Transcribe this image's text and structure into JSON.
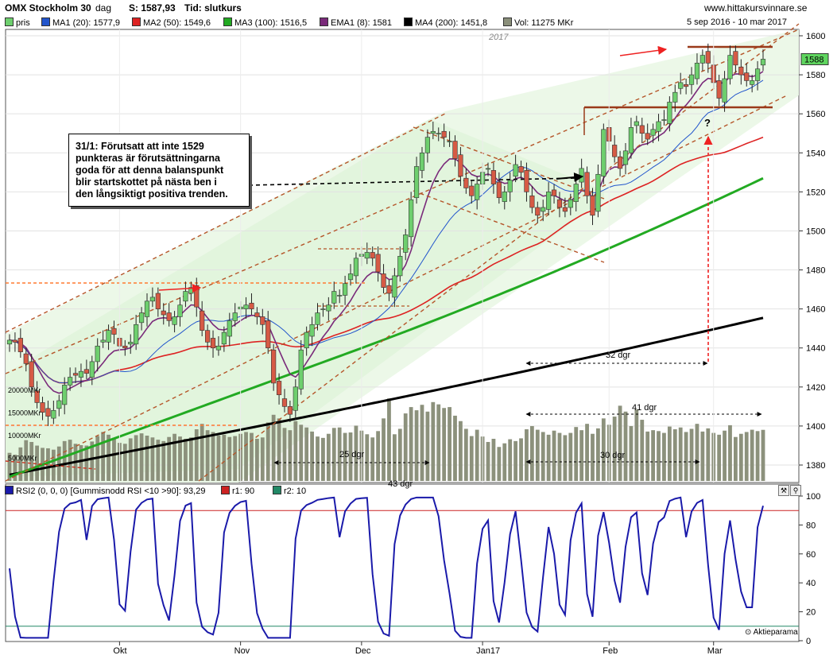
{
  "header": {
    "instrument": "OMX Stockholm 30",
    "period": "dag",
    "close_label": "S: 1587,93",
    "time_label": "Tid: slutkurs",
    "website": "www.hittakursvinnare.se",
    "date_range": "5 sep 2016 - 10 mar 2017"
  },
  "legend": [
    {
      "label": "pris",
      "color": "#6ecf6e"
    },
    {
      "label": "MA1 (20): 1577,9",
      "color": "#2255cc"
    },
    {
      "label": "MA2 (50): 1549,6",
      "color": "#dd2222"
    },
    {
      "label": "MA3 (100): 1516,5",
      "color": "#22aa22"
    },
    {
      "label": "EMA1 (8): 1581",
      "color": "#7a2a7a"
    },
    {
      "label": "MA4 (200): 1451,8",
      "color": "#000000"
    },
    {
      "label": "Vol: 11275 MKr",
      "color": "#8a8f7a"
    }
  ],
  "annotation": {
    "lines": [
      "31/1: Förutsatt att inte 1529",
      "punkteras är förutsättningarna",
      "goda för att denna balanspunkt",
      "blir startskottet på nästa ben i",
      "den långsiktigt positiva trenden."
    ],
    "question_mark": "?",
    "year_label": "2017",
    "dur_25": "25 dgr",
    "dur_32": "32 dgr",
    "dur_41": "41 dgr",
    "dur_30": "30 dgr",
    "dur_43": "43 dgr"
  },
  "price_axis": {
    "ticks": [
      1380,
      1400,
      1420,
      1440,
      1460,
      1480,
      1500,
      1520,
      1540,
      1560,
      1580,
      1600
    ],
    "last_price_label": "1588"
  },
  "volume_axis": {
    "ticks": [
      "20000MKr",
      "15000MKr",
      "10000MKr",
      "5000MKr"
    ]
  },
  "x_axis": {
    "labels": [
      "Okt",
      "Nov",
      "Dec",
      "Jan17",
      "Feb",
      "Mar"
    ]
  },
  "rsi": {
    "legend": "RSI2 (0, 0, 0) [Gummisnodd RSI <10 >90]: 93,29",
    "r1": "r1: 90",
    "r2": "r2: 10",
    "ticks": [
      0,
      20,
      40,
      60,
      80,
      100
    ],
    "credit": "Aktieparama",
    "colors": {
      "line": "#1a1aaa",
      "r1": "#cc2222",
      "r2": "#228866"
    }
  },
  "chart_data": {
    "type": "candlestick",
    "title": "OMX Stockholm 30",
    "y_range": [
      1370,
      1605
    ],
    "rsi_range": [
      0,
      100
    ],
    "closes": [
      1444,
      1443,
      1438,
      1432,
      1420,
      1412,
      1407,
      1405,
      1408,
      1413,
      1421,
      1425,
      1426,
      1428,
      1427,
      1433,
      1441,
      1444,
      1449,
      1447,
      1441,
      1440,
      1443,
      1452,
      1458,
      1464,
      1466,
      1460,
      1457,
      1454,
      1456,
      1462,
      1469,
      1471,
      1461,
      1449,
      1443,
      1440,
      1441,
      1448,
      1454,
      1458,
      1461,
      1462,
      1460,
      1456,
      1452,
      1440,
      1422,
      1416,
      1410,
      1406,
      1420,
      1439,
      1448,
      1452,
      1458,
      1460,
      1462,
      1469,
      1467,
      1473,
      1478,
      1486,
      1488,
      1489,
      1486,
      1479,
      1471,
      1468,
      1477,
      1487,
      1498,
      1516,
      1533,
      1540,
      1548,
      1551,
      1550,
      1548,
      1546,
      1537,
      1528,
      1522,
      1518,
      1524,
      1530,
      1532,
      1524,
      1517,
      1520,
      1526,
      1534,
      1530,
      1520,
      1512,
      1508,
      1512,
      1520,
      1518,
      1512,
      1510,
      1516,
      1524,
      1532,
      1518,
      1508,
      1529,
      1552,
      1546,
      1538,
      1532,
      1541,
      1553,
      1556,
      1550,
      1547,
      1552,
      1556,
      1557,
      1566,
      1571,
      1576,
      1574,
      1580,
      1586,
      1590,
      1586,
      1576,
      1568,
      1578,
      1590,
      1585,
      1580,
      1577,
      1577,
      1583,
      1588
    ],
    "volumes": [
      6200,
      5800,
      7400,
      9000,
      8600,
      7800,
      7300,
      7200,
      6900,
      7600,
      8800,
      9100,
      8200,
      7900,
      7800,
      8700,
      9900,
      10800,
      10200,
      9500,
      8400,
      8200,
      9400,
      10100,
      10500,
      10000,
      9600,
      9100,
      8800,
      9700,
      10400,
      9800,
      9300,
      9600,
      11400,
      12600,
      11200,
      10800,
      10000,
      10200,
      9700,
      9900,
      10400,
      10800,
      10600,
      9300,
      9600,
      12900,
      14600,
      13800,
      11700,
      11200,
      13200,
      12400,
      11800,
      10900,
      9800,
      9500,
      10400,
      11700,
      11800,
      10600,
      10700,
      12200,
      11100,
      10300,
      9600,
      11000,
      13800,
      18200,
      10300,
      11500,
      14900,
      16300,
      15600,
      16800,
      15300,
      17400,
      16900,
      16100,
      16300,
      14400,
      13200,
      11500,
      9900,
      11300,
      9800,
      8600,
      9300,
      7500,
      8300,
      9200,
      8800,
      9400,
      11400,
      12100,
      11300,
      10800,
      10200,
      11100,
      10600,
      10100,
      10600,
      11900,
      11200,
      12600,
      10400,
      11600,
      13800,
      12400,
      14200,
      16600,
      15300,
      12100,
      15800,
      13500,
      10900,
      11200,
      11000,
      10600,
      12000,
      11400,
      11800,
      10800,
      11500,
      12600,
      10900,
      11600,
      10600,
      10200,
      11100,
      12300,
      9700,
      10400,
      10800,
      11300,
      11000,
      11275
    ],
    "ma20_end": 1577.9,
    "ma50_end": 1549.6,
    "ma100_end": 1516.5,
    "ema8_end": 1581,
    "ma200_end": 1451.8,
    "rsi_last": 93.29,
    "r1": 90,
    "r2": 10
  }
}
